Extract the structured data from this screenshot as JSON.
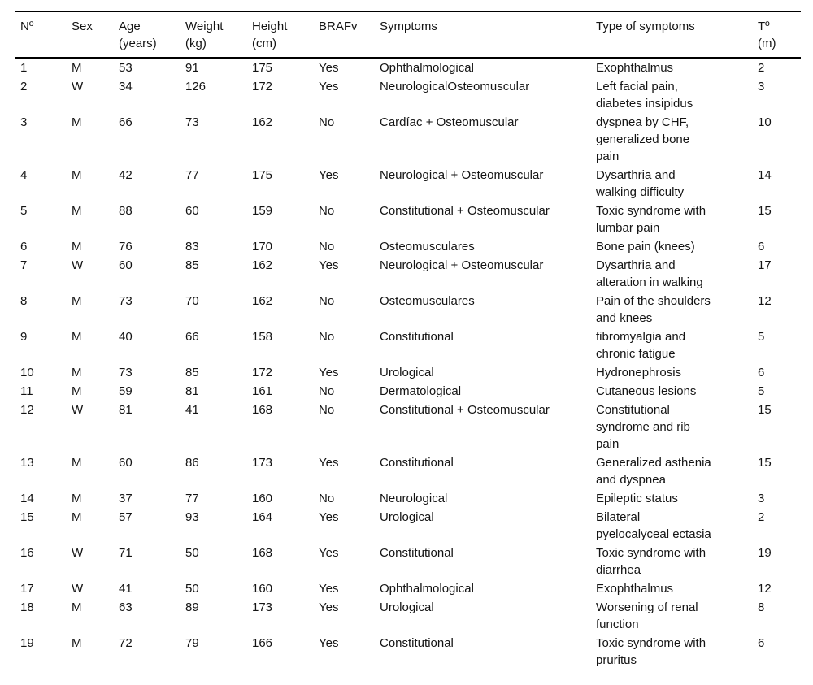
{
  "colors": {
    "background": "#ffffff",
    "text": "#141414",
    "rule": "#000000"
  },
  "table": {
    "name": "patient-characteristics-table",
    "headers": [
      {
        "label": "Nº",
        "unit": ""
      },
      {
        "label": "Sex",
        "unit": ""
      },
      {
        "label": "Age",
        "unit": "(years)"
      },
      {
        "label": "Weight",
        "unit": "(kg)"
      },
      {
        "label": "Height",
        "unit": "(cm)"
      },
      {
        "label": "BRAFv",
        "unit": ""
      },
      {
        "label": "Symptoms",
        "unit": ""
      },
      {
        "label": "Type of symptoms",
        "unit": ""
      },
      {
        "label": "Tº",
        "unit": "(m)"
      }
    ],
    "rows": [
      [
        "1",
        "M",
        "53",
        "91",
        "175",
        "Yes",
        "Ophthalmological",
        "Exophthalmus",
        "2"
      ],
      [
        "2",
        "W",
        "34",
        "126",
        "172",
        "Yes",
        "NeurologicalOsteomuscular",
        "Left facial pain, diabetes insipidus",
        "3"
      ],
      [
        "3",
        "M",
        "66",
        "73",
        "162",
        "No",
        "Cardíac + Osteomuscular",
        "dyspnea by CHF, generalized bone pain",
        "10"
      ],
      [
        "4",
        "M",
        "42",
        "77",
        "175",
        "Yes",
        "Neurological + Osteomuscular",
        "Dysarthria and walking difficulty",
        "14"
      ],
      [
        "5",
        "M",
        "88",
        "60",
        "159",
        "No",
        "Constitutional + Osteomuscular",
        "Toxic syndrome with lumbar pain",
        "15"
      ],
      [
        "6",
        "M",
        "76",
        "83",
        "170",
        "No",
        "Osteomusculares",
        "Bone pain (knees)",
        "6"
      ],
      [
        "7",
        "W",
        "60",
        "85",
        "162",
        "Yes",
        "Neurological + Osteomuscular",
        "Dysarthria and alteration in walking",
        "17"
      ],
      [
        "8",
        "M",
        "73",
        "70",
        "162",
        "No",
        "Osteomusculares",
        "Pain of the shoulders and knees",
        "12"
      ],
      [
        "9",
        "M",
        "40",
        "66",
        "158",
        "No",
        "Constitutional",
        "fibromyalgia and chronic fatigue",
        "5"
      ],
      [
        "10",
        "M",
        "73",
        "85",
        "172",
        "Yes",
        "Urological",
        "Hydronephrosis",
        "6"
      ],
      [
        "11",
        "M",
        "59",
        "81",
        "161",
        "No",
        "Dermatological",
        "Cutaneous lesions",
        "5"
      ],
      [
        "12",
        "W",
        "81",
        "41",
        "168",
        "No",
        "Constitutional + Osteomuscular",
        "Constitutional syndrome and rib pain",
        "15"
      ],
      [
        "13",
        "M",
        "60",
        "86",
        "173",
        "Yes",
        "Constitutional",
        "Generalized asthenia and dyspnea",
        "15"
      ],
      [
        "14",
        "M",
        "37",
        "77",
        "160",
        "No",
        "Neurological",
        "Epileptic status",
        "3"
      ],
      [
        "15",
        "M",
        "57",
        "93",
        "164",
        "Yes",
        "Urological",
        "Bilateral pyelocalyceal ectasia",
        "2"
      ],
      [
        "16",
        "W",
        "71",
        "50",
        "168",
        "Yes",
        "Constitutional",
        "Toxic syndrome with diarrhea",
        "19"
      ],
      [
        "17",
        "W",
        "41",
        "50",
        "160",
        "Yes",
        "Ophthalmological",
        "Exophthalmus",
        "12"
      ],
      [
        "18",
        "M",
        "63",
        "89",
        "173",
        "Yes",
        "Urological",
        "Worsening of renal function",
        "8"
      ],
      [
        "19",
        "M",
        "72",
        "79",
        "166",
        "Yes",
        "Constitutional",
        "Toxic syndrome with pruritus",
        "6"
      ]
    ],
    "column_keys": [
      "number",
      "sex",
      "age-years",
      "weight-kg",
      "height-cm",
      "brafv",
      "symptoms",
      "type-of-symptoms",
      "t-months"
    ]
  }
}
